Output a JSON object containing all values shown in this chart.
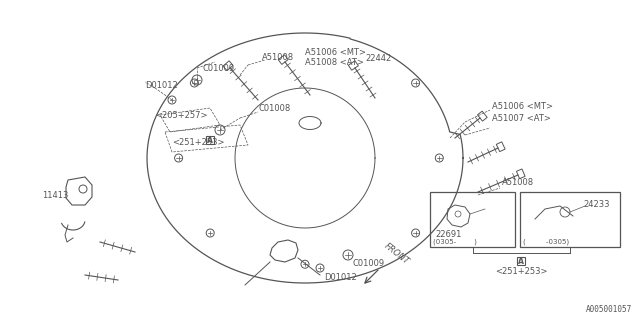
{
  "bg_color": "#ffffff",
  "line_color": "#555555",
  "fig_width": 6.4,
  "fig_height": 3.2,
  "dpi": 100,
  "part_number": "A005001057",
  "labels": {
    "C01009_top": "C01009",
    "D01012": "D01012",
    "C01008_left": "C01008",
    "A51008_top": "A51008",
    "A51006_MT_top": "A51006 <MT>",
    "A51008_AT_top": "A51008 <AT>",
    "22442": "22442",
    "A51006_MT_right": "A51006 <MT>",
    "A51007_AT_right": "A51007 <AT>",
    "A51008_right": "A51008",
    "ref_205_257": "<205+257>",
    "ref_251_253": "<251+253>",
    "11413": "11413",
    "C01009_bot": "C01009",
    "D01012_bot": "D01012",
    "22691": "22691",
    "ref_0305_left": "(0305-        )",
    "ref_0305_right": "(         -0305)",
    "24233": "24233",
    "FRONT": "FRONT",
    "A_label": "A"
  }
}
